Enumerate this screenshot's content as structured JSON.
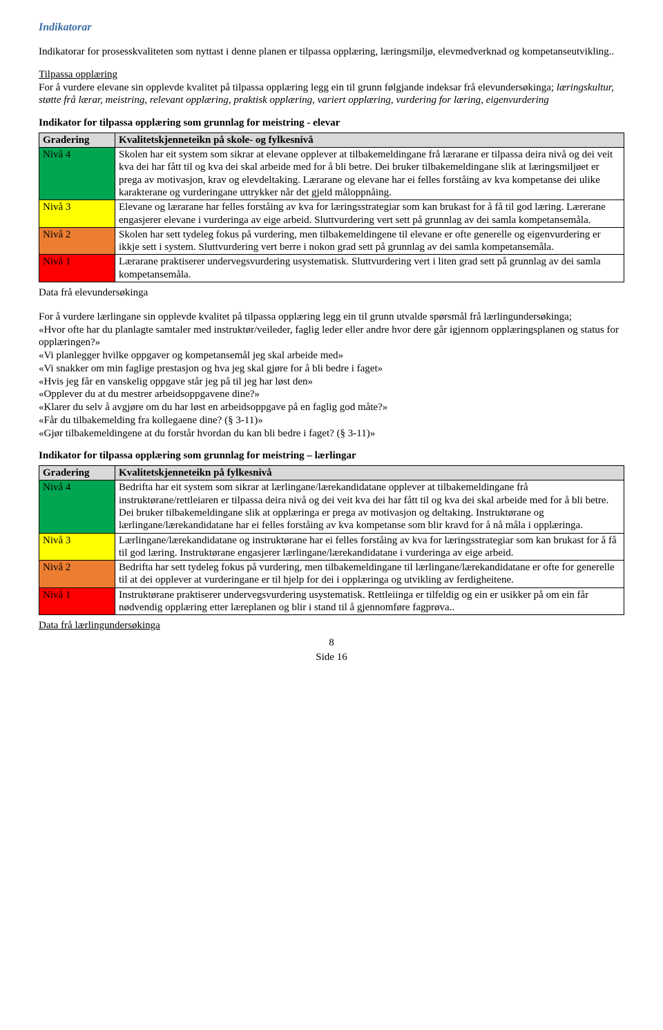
{
  "title": "Indikatorar",
  "intro": "Indikatorar for prosesskvaliteten som nyttast i denne planen er tilpassa opplæring, læringsmiljø, elevmedverknad og kompetanseutvikling..",
  "sub_heading": "Tilpassa opplæring",
  "sub_text_prefix": "For å vurdere elevane sin opplevde kvalitet på tilpassa opplæring legg ein til grunn følgjande indeksar frå elevundersøkinga; ",
  "sub_text_italic": "læringskultur, støtte frå lærar, meistring, relevant opplæring, praktisk opplæring, variert opplæring, vurdering for læring, eigenvurdering",
  "table1_title": "Indikator for tilpassa opplæring som grunnlag for meistring - elevar",
  "table1": {
    "header_col1": "Gradering",
    "header_col2": "Kvalitetskjenneteikn på skole- og fylkesnivå",
    "rows": [
      {
        "label": "Nivå 4",
        "bg": "bg-green",
        "text": "Skolen har eit system som sikrar at elevane opplever at tilbakemeldingane frå lærarane er tilpassa deira nivå og dei veit kva dei har fått til og kva dei skal arbeide med for å bli betre. Dei bruker tilbakemeldingane slik at læringsmiljøet er prega av motivasjon,  krav  og elevdeltaking. Lærarane og elevane har ei felles forståing av kva kompetanse dei ulike karakterane og vurderingane uttrykker når det gjeld måloppnåing."
      },
      {
        "label": "Nivå 3",
        "bg": "bg-yellow",
        "text": "Elevane og lærarane har felles forståing av kva for læringsstrategiar som kan brukast for å få til god læring. Lærerane engasjerer elevane i vurderinga av eige arbeid. Sluttvurdering vert sett på grunnlag av dei samla kompetansemåla."
      },
      {
        "label": "Nivå 2",
        "bg": "bg-orange",
        "text": "Skolen har sett tydeleg fokus på vurdering, men tilbakemeldingene til elevane er ofte generelle og eigenvurdering er ikkje sett i system. Sluttvurdering vert berre i nokon grad sett på grunnlag av dei samla kompetansemåla."
      },
      {
        "label": "Nivå 1",
        "bg": "bg-red",
        "text": "Lærarane praktiserer undervegsvurdering usystematisk. Sluttvurdering vert i liten grad sett på grunnlag av dei samla kompetansemåla."
      }
    ]
  },
  "table1_footnote": "Data frå elevundersøkinga",
  "mid_para": "For å vurdere lærlingane sin opplevde kvalitet på tilpassa opplæring legg ein til grunn utvalde spørsmål frå lærlingundersøkinga;",
  "questions": [
    "«Hvor ofte har du planlagte samtaler med instruktør/veileder, faglig leder eller andre hvor dere går igjennom opplæringsplanen og status for opplæringen?»",
    "«Vi planlegger hvilke oppgaver og kompetansemål jeg skal arbeide med»",
    "«Vi snakker om min faglige prestasjon og hva jeg skal gjøre for å bli bedre i faget»",
    "«Hvis jeg får en vanskelig oppgave står jeg på til jeg har løst den»",
    "«Opplever du at du mestrer arbeidsoppgavene dine?»",
    "«Klarer du selv å avgjøre om du har løst en arbeidsoppgave på en faglig god måte?»",
    "«Får du tilbakemelding fra kollegaene dine? (§ 3-11)»",
    "«Gjør tilbakemeldingene at du forstår hvordan du kan bli bedre i faget? (§ 3-11)»"
  ],
  "table2_title": "Indikator for tilpassa opplæring som grunnlag for meistring – lærlingar",
  "table2": {
    "header_col1": "Gradering",
    "header_col2": "Kvalitetskjenneteikn på fylkesnivå",
    "rows": [
      {
        "label": "Nivå 4",
        "bg": "bg-green",
        "text": "Bedrifta har eit system som sikrar at lærlingane/lærekandidatane opplever at tilbakemeldingane frå instruktørane/rettleiaren er tilpassa deira nivå og dei veit kva dei har fått til og kva dei skal arbeide med for å bli betre. Dei bruker tilbakemeldingane slik at opplæringa er prega av motivasjon og deltaking. Instruktørane og lærlingane/lærekandidatane har ei felles forståing av kva kompetanse som blir kravd for å nå måla i opplæringa."
      },
      {
        "label": "Nivå 3",
        "bg": "bg-yellow",
        "text": "Lærlingane/lærekandidatane og instruktørane har ei felles forståing av kva for læringsstrategiar som kan brukast for å få til god læring. Instruktørane engasjerer lærlingane/lærekandidatane i vurderinga av eige arbeid."
      },
      {
        "label": "Nivå 2",
        "bg": "bg-orange",
        "text": "Bedrifta har sett tydeleg fokus på vurdering, men tilbakemeldingane til lærlingane/lærekandidatane er ofte for generelle til at dei opplever at vurderingane er til hjelp for dei i opplæringa og utvikling av ferdigheitene."
      },
      {
        "label": "Nivå 1",
        "bg": "bg-red",
        "text": "Instruktørane praktiserer undervegsvurdering usystematisk. Rettleiinga er tilfeldig og ein er usikker på om ein får nødvendig opplæring etter læreplanen og blir i stand til å gjennomføre fagprøva.."
      }
    ]
  },
  "table2_footnote": "Data frå lærlingundersøkinga",
  "page_num": "8",
  "side": "Side 16"
}
